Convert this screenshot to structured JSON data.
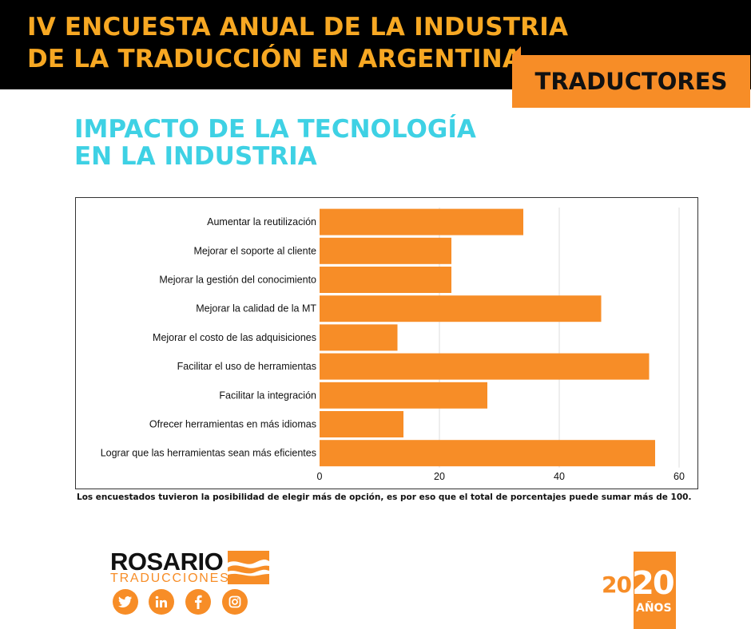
{
  "header": {
    "title_line1": "IV ENCUESTA ANUAL DE LA INDUSTRIA",
    "title_line2": "DE LA TRADUCCIÓN EN ARGENTINA",
    "tab_label": "TRADUCTORES"
  },
  "subtitle": {
    "line1": "IMPACTO DE LA TECNOLOGÍA",
    "line2": "EN LA INDUSTRIA"
  },
  "chart_data": {
    "type": "bar",
    "orientation": "horizontal",
    "categories": [
      "Aumentar la reutilización",
      "Mejorar el soporte al cliente",
      "Mejorar la gestión del conocimiento",
      "Mejorar la calidad de la MT",
      "Mejorar el costo de las adquisiciones",
      "Facilitar el uso de herramientas",
      "Facilitar la integración",
      "Ofrecer herramientas en más idiomas",
      "Lograr que las herramientas sean más eficientes"
    ],
    "values": [
      34,
      22,
      22,
      47,
      13,
      55,
      28,
      14,
      56
    ],
    "xlim": [
      0,
      60
    ],
    "xticks": [
      0,
      20,
      40,
      60
    ],
    "grid": true,
    "bar_color": "#f78d27"
  },
  "note": "Los encuestados tuvieron la posibilidad de elegir más de opción, es por eso que el total de porcentajes puede sumar más de 100.",
  "footer": {
    "logo_word": "ROSARIO",
    "logo_sub": "TRADUCCIONES",
    "social_icons": [
      "twitter-icon",
      "linkedin-icon",
      "facebook-icon",
      "instagram-icon"
    ],
    "badge_number_small": "20",
    "badge_number_big": "20",
    "badge_label": "AÑOS"
  },
  "colors": {
    "accent": "#f78d27",
    "title": "#f7a823",
    "subtitle": "#3ed1e4"
  }
}
